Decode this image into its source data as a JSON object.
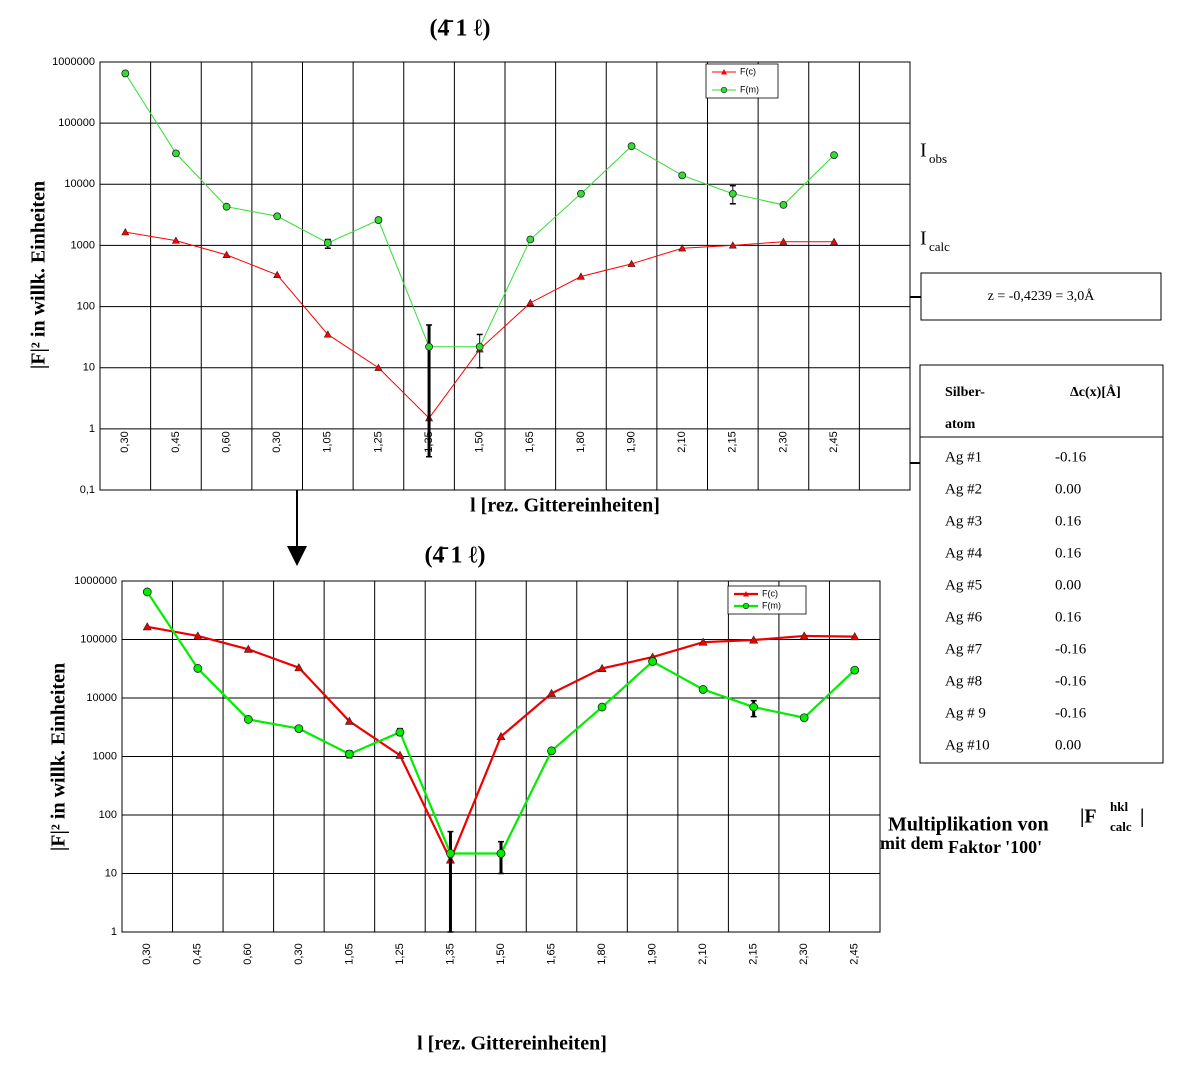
{
  "chart_data": [
    {
      "type": "line",
      "title": "(4̄ 1 ℓ)",
      "ylabel": "|F|² in willk. Einheiten",
      "xlabel": "l [rez. Gittereinheiten]",
      "log_y": true,
      "grid": true,
      "legend": "top-right",
      "categories": [
        "0,30",
        "0,45",
        "0,60",
        "0,30",
        "1,05",
        "1,25",
        "1,35",
        "1,50",
        "1,65",
        "1,80",
        "1,90",
        "2,10",
        "2,15",
        "2,30",
        "2,45"
      ],
      "series": [
        {
          "name": "F(c)",
          "color": "#ff0000",
          "marker": "triangle",
          "values": [
            1650,
            1200,
            700,
            330,
            35,
            10,
            1.5,
            20,
            115,
            310,
            500,
            900,
            1000,
            1150,
            1150
          ]
        },
        {
          "name": "F(m)",
          "color": "#33dd33",
          "marker": "circle",
          "values": [
            650000,
            32000,
            4300,
            3000,
            1100,
            2600,
            22,
            22,
            1250,
            7000,
            42000,
            14000,
            7000,
            4600,
            30000
          ],
          "error_bars": [
            null,
            null,
            null,
            null,
            [
              900,
              1250
            ],
            [
              2400,
              2800
            ],
            [
              0.35,
              50
            ],
            [
              10,
              35
            ],
            null,
            null,
            null,
            null,
            [
              4800,
              9500
            ],
            null,
            null
          ]
        }
      ],
      "ylim": [
        0.1,
        1000000
      ],
      "yticks": [
        {
          "value": 0.1,
          "label": "0,1"
        },
        1,
        10,
        100,
        1000,
        10000,
        100000,
        1000000
      ]
    },
    {
      "type": "line",
      "title": "(4̄ 1 ℓ)",
      "ylabel": "|F|² in willk. Einheiten",
      "xlabel": "l [rez. Gittereinheiten]",
      "log_y": true,
      "grid": true,
      "legend": "top-right",
      "categories": [
        "0,30",
        "0,45",
        "0,60",
        "0,30",
        "1,05",
        "1,25",
        "1,35",
        "1,50",
        "1,65",
        "1,80",
        "1,90",
        "2,10",
        "2,15",
        "2,30",
        "2,45"
      ],
      "series": [
        {
          "name": "F(c)",
          "color": "#ee0000",
          "marker": "triangle",
          "values": [
            165000,
            115000,
            68000,
            33000,
            4000,
            1050,
            17,
            2200,
            12000,
            32000,
            50000,
            90000,
            98000,
            115000,
            112000
          ]
        },
        {
          "name": "F(m)",
          "color": "#00ee00",
          "marker": "circle",
          "values": [
            650000,
            32000,
            4300,
            3000,
            1100,
            2600,
            22,
            22,
            1250,
            7000,
            42000,
            14000,
            7000,
            4600,
            30000
          ],
          "error_bars": [
            null,
            null,
            [
              4000,
              4700
            ],
            [
              2700,
              3300
            ],
            [
              950,
              1250
            ],
            [
              2300,
              3000
            ],
            [
              1,
              52
            ],
            [
              10,
              35
            ],
            null,
            null,
            null,
            null,
            [
              4800,
              9000
            ],
            null,
            null
          ]
        }
      ],
      "ylim": [
        1,
        1000000
      ],
      "yticks": [
        1,
        10,
        100,
        1000,
        10000,
        100000,
        1000000
      ]
    }
  ],
  "annotations": [
    {
      "text": "I",
      "sub": "obs"
    },
    {
      "text": "I",
      "sub": "calc"
    },
    {
      "text": "z =  -0,4239 = 3,0Å"
    }
  ],
  "note": {
    "line1": "Multiplikation von",
    "abs_open": "|F",
    "sup": "hkl",
    "sub": "calc",
    "abs_close": "|",
    "line2a": "mit dem",
    "line2b": "Faktor '100'"
  },
  "table": {
    "header": [
      "Silber-",
      "atom",
      "Δc(x)[Å]"
    ],
    "rows": [
      [
        "Ag #1",
        "-0.16"
      ],
      [
        "Ag #2",
        "0.00"
      ],
      [
        "Ag #3",
        "0.16"
      ],
      [
        "Ag #4",
        "0.16"
      ],
      [
        "Ag #5",
        "0.00"
      ],
      [
        "Ag #6",
        "0.16"
      ],
      [
        "Ag #7",
        "-0.16"
      ],
      [
        "Ag #8",
        "-0.16"
      ],
      [
        "Ag # 9",
        "-0.16"
      ],
      [
        "Ag #10",
        "0.00"
      ]
    ]
  }
}
